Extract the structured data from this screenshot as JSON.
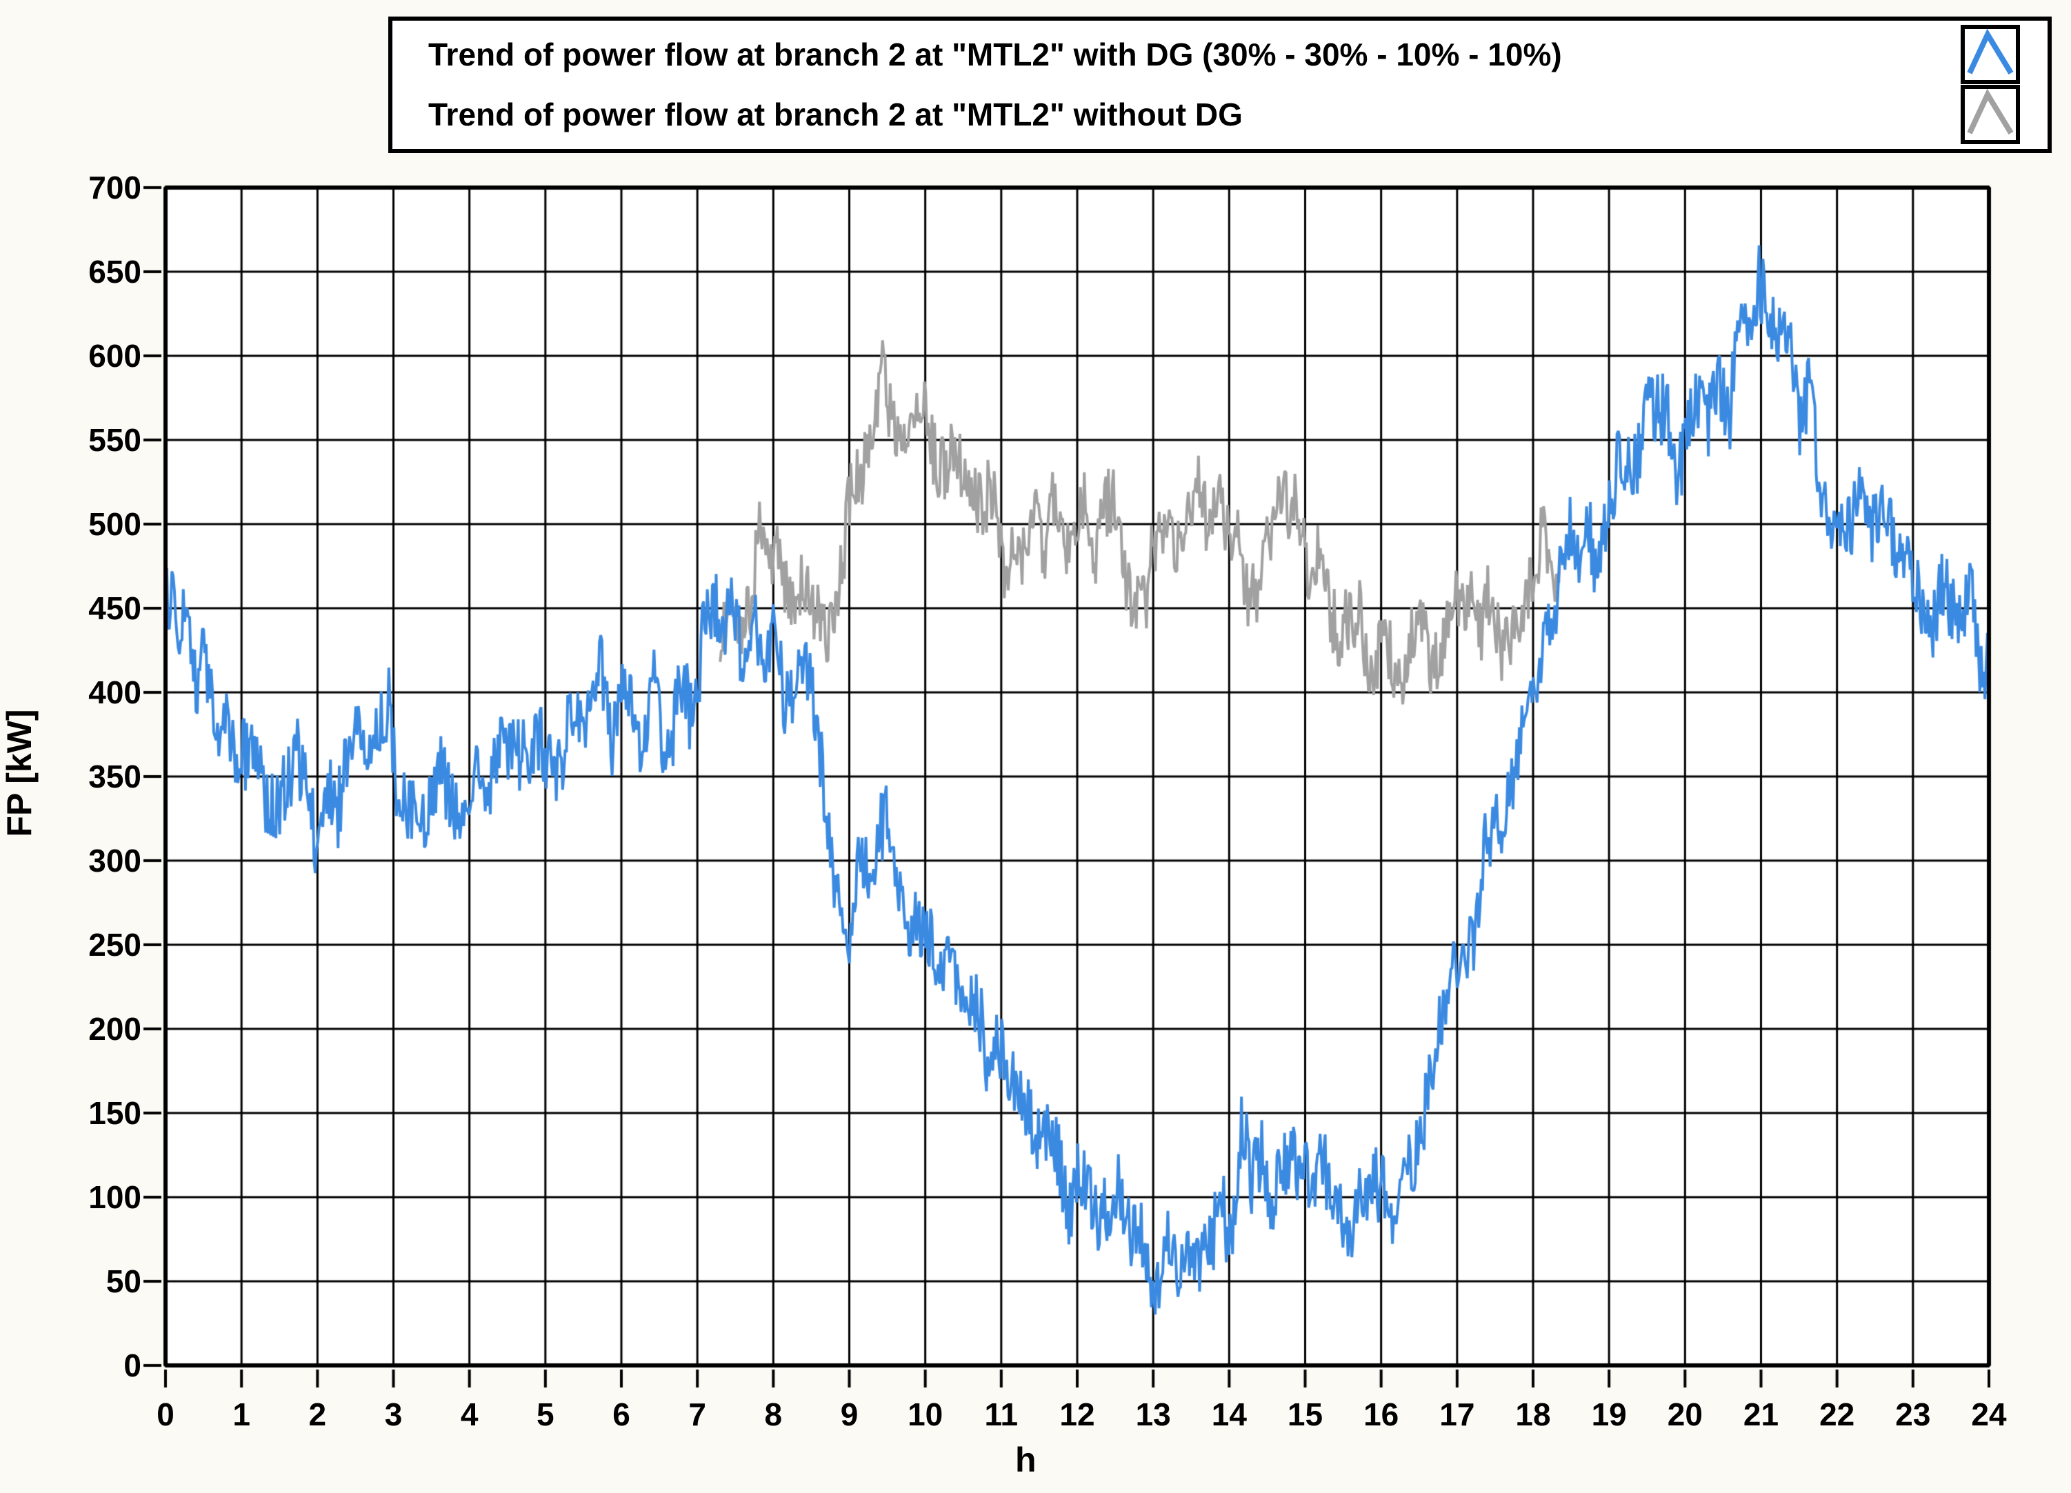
{
  "chart_data": {
    "type": "line",
    "title": "",
    "xlabel": "h",
    "ylabel": "FP [kW]",
    "xlim": [
      0,
      24
    ],
    "ylim": [
      0,
      700
    ],
    "xticks": [
      0,
      1,
      2,
      3,
      4,
      5,
      6,
      7,
      8,
      9,
      10,
      11,
      12,
      13,
      14,
      15,
      16,
      17,
      18,
      19,
      20,
      21,
      22,
      23,
      24
    ],
    "yticks": [
      0,
      50,
      100,
      150,
      200,
      250,
      300,
      350,
      400,
      450,
      500,
      550,
      600,
      650,
      700
    ],
    "grid": true,
    "legend_position": "top",
    "plot_background": "#ffffff",
    "grid_color": "#000000",
    "series": [
      {
        "name": "Trend of power flow at branch 2 at \"MTL2\" with DG (30% - 30% - 10% - 10%)",
        "color": "#3b8ae2",
        "noise_amplitude": 36,
        "sample_step_h": 0.0167,
        "range_h": [
          0,
          24
        ],
        "trend": [
          [
            0,
            448
          ],
          [
            0.2,
            432
          ],
          [
            0.5,
            402
          ],
          [
            0.8,
            375
          ],
          [
            1,
            368
          ],
          [
            1.3,
            352
          ],
          [
            1.6,
            362
          ],
          [
            2,
            334
          ],
          [
            2.3,
            352
          ],
          [
            2.6,
            362
          ],
          [
            2.9,
            372
          ],
          [
            3.2,
            344
          ],
          [
            3.5,
            338
          ],
          [
            3.8,
            342
          ],
          [
            4,
            326
          ],
          [
            4.3,
            344
          ],
          [
            4.6,
            352
          ],
          [
            5,
            356
          ],
          [
            5.4,
            385
          ],
          [
            5.7,
            395
          ],
          [
            6,
            385
          ],
          [
            6.3,
            378
          ],
          [
            6.6,
            390
          ],
          [
            7,
            400
          ],
          [
            7.3,
            440
          ],
          [
            7.5,
            430
          ],
          [
            7.9,
            425
          ],
          [
            8.2,
            410
          ],
          [
            8.5,
            386
          ],
          [
            8.7,
            330
          ],
          [
            9,
            268
          ],
          [
            9.3,
            282
          ],
          [
            9.5,
            318
          ],
          [
            9.8,
            276
          ],
          [
            10,
            262
          ],
          [
            10.3,
            250
          ],
          [
            10.6,
            212
          ],
          [
            10.9,
            180
          ],
          [
            11.2,
            146
          ],
          [
            11.5,
            118
          ],
          [
            11.8,
            108
          ],
          [
            12,
            122
          ],
          [
            12.3,
            100
          ],
          [
            12.6,
            85
          ],
          [
            12.9,
            68
          ],
          [
            13.1,
            46
          ],
          [
            13.4,
            60
          ],
          [
            13.7,
            56
          ],
          [
            14,
            82
          ],
          [
            14.2,
            128
          ],
          [
            14.5,
            118
          ],
          [
            14.8,
            96
          ],
          [
            15,
            114
          ],
          [
            15.3,
            100
          ],
          [
            15.6,
            74
          ],
          [
            15.9,
            86
          ],
          [
            16.2,
            102
          ],
          [
            16.5,
            150
          ],
          [
            16.8,
            200
          ],
          [
            17,
            235
          ],
          [
            17.3,
            280
          ],
          [
            17.6,
            322
          ],
          [
            17.9,
            392
          ],
          [
            18.2,
            456
          ],
          [
            18.5,
            506
          ],
          [
            18.7,
            482
          ],
          [
            19,
            506
          ],
          [
            19.3,
            522
          ],
          [
            19.5,
            548
          ],
          [
            19.8,
            545
          ],
          [
            20,
            560
          ],
          [
            20.3,
            572
          ],
          [
            20.6,
            586
          ],
          [
            20.9,
            602
          ],
          [
            21.1,
            648
          ],
          [
            21.3,
            602
          ],
          [
            21.6,
            562
          ],
          [
            21.9,
            526
          ],
          [
            22.2,
            506
          ],
          [
            22.5,
            490
          ],
          [
            22.8,
            472
          ],
          [
            23,
            464
          ],
          [
            23.4,
            450
          ],
          [
            23.7,
            440
          ],
          [
            24,
            428
          ]
        ]
      },
      {
        "name": "Trend of power flow at branch 2 at \"MTL2\" without DG",
        "color": "#a1a1a1",
        "noise_amplitude": 34,
        "sample_step_h": 0.0167,
        "range_h": [
          7.3,
          18.35
        ],
        "trend": [
          [
            7.3,
            432
          ],
          [
            7.6,
            446
          ],
          [
            7.9,
            486
          ],
          [
            8.2,
            478
          ],
          [
            8.5,
            452
          ],
          [
            8.7,
            434
          ],
          [
            9,
            510
          ],
          [
            9.2,
            545
          ],
          [
            9.5,
            582
          ],
          [
            9.7,
            560
          ],
          [
            10,
            578
          ],
          [
            10.2,
            545
          ],
          [
            10.5,
            506
          ],
          [
            10.8,
            520
          ],
          [
            11,
            496
          ],
          [
            11.3,
            476
          ],
          [
            11.6,
            506
          ],
          [
            11.9,
            490
          ],
          [
            12.2,
            506
          ],
          [
            12.5,
            496
          ],
          [
            12.8,
            470
          ],
          [
            13,
            496
          ],
          [
            13.3,
            480
          ],
          [
            13.6,
            514
          ],
          [
            13.9,
            504
          ],
          [
            14.2,
            482
          ],
          [
            14.5,
            490
          ],
          [
            14.7,
            528
          ],
          [
            15,
            482
          ],
          [
            15.3,
            452
          ],
          [
            15.6,
            432
          ],
          [
            15.9,
            412
          ],
          [
            16.2,
            420
          ],
          [
            16.5,
            436
          ],
          [
            16.8,
            440
          ],
          [
            17.1,
            450
          ],
          [
            17.4,
            442
          ],
          [
            17.7,
            446
          ],
          [
            18,
            462
          ],
          [
            18.35,
            480
          ]
        ]
      }
    ]
  }
}
